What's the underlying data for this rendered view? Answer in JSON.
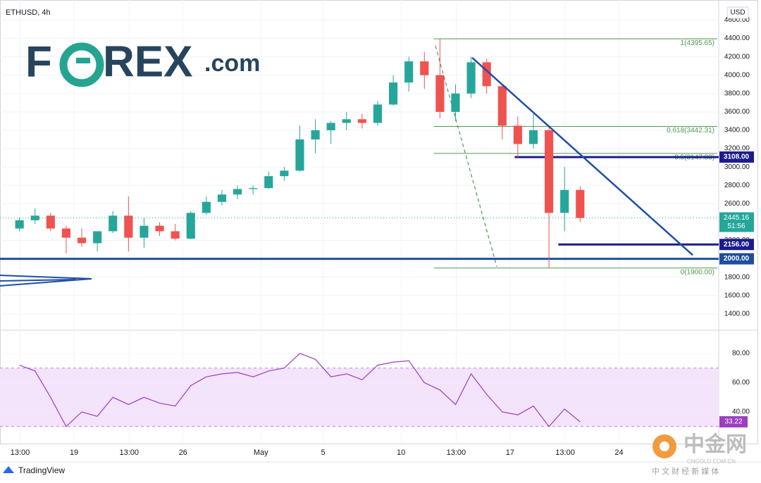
{
  "chart_data": [
    {
      "type": "candlestick",
      "title": "ETHUSD, 4h",
      "currency": "USD",
      "countdown": "51:56",
      "x": [
        15.5,
        16.5,
        17.5,
        18.5,
        19.5,
        20.5,
        21.5,
        22.5,
        23.5,
        24.5,
        25.5,
        26.5,
        27.5,
        28.5,
        29.5,
        30.5,
        31.5,
        32.5,
        33.5,
        34.5,
        35.5,
        36.5,
        37.5,
        38.5,
        39.5,
        40.5,
        41.5,
        42.5,
        43.5,
        44.5,
        45.5,
        46.5,
        47.5,
        48.5,
        49.5,
        50.5,
        51.5
      ],
      "open": [
        2330,
        2420,
        2470,
        2330,
        2230,
        2170,
        2300,
        2470,
        2230,
        2360,
        2300,
        2220,
        2500,
        2620,
        2700,
        2760,
        2770,
        2900,
        2960,
        3300,
        3400,
        3480,
        3520,
        3480,
        3680,
        3920,
        4150,
        4000,
        3600,
        3800,
        4140,
        3880,
        3450,
        3250,
        3400,
        2500,
        2750
      ],
      "high": [
        2450,
        2550,
        2500,
        2360,
        2330,
        2300,
        2520,
        2680,
        2450,
        2400,
        2380,
        2520,
        2680,
        2750,
        2800,
        2800,
        2950,
        3000,
        3450,
        3520,
        3500,
        3600,
        3580,
        3720,
        4000,
        4200,
        4250,
        4395.65,
        3900,
        4200,
        4180,
        3900,
        3550,
        3580,
        3450,
        3000,
        2790
      ],
      "low": [
        2300,
        2380,
        2300,
        2060,
        2130,
        2080,
        2280,
        2080,
        2120,
        2250,
        2200,
        2210,
        2480,
        2580,
        2650,
        2700,
        2760,
        2850,
        2950,
        3150,
        3250,
        3400,
        3420,
        3450,
        3670,
        3820,
        3850,
        3530,
        3500,
        3750,
        3800,
        3300,
        3100,
        3200,
        1900,
        2300,
        2400
      ],
      "close": [
        2420,
        2470,
        2330,
        2230,
        2170,
        2300,
        2470,
        2230,
        2360,
        2300,
        2220,
        2500,
        2620,
        2700,
        2760,
        2770,
        2900,
        2960,
        3300,
        3400,
        3480,
        3520,
        3480,
        3680,
        3920,
        4150,
        4000,
        3600,
        3800,
        4140,
        3880,
        3450,
        3250,
        3400,
        2500,
        2750,
        2445.16
      ],
      "up_color": "#26a69a",
      "down_color": "#ef5350",
      "xlim": [
        14.25,
        60.4
      ],
      "xticks": [
        {
          "value": 15.54,
          "label": "13:00"
        },
        19,
        {
          "value": 22.54,
          "label": "13:00"
        },
        26,
        {
          "value": 31,
          "label": "May"
        },
        {
          "value": 35,
          "label": "5"
        },
        {
          "value": 40,
          "label": "10"
        },
        {
          "value": 43.54,
          "label": "13:00"
        },
        {
          "value": 47,
          "label": "17"
        },
        {
          "value": 50.54,
          "label": "13:00"
        },
        {
          "value": 54,
          "label": "24"
        }
      ],
      "ylim": [
        1230,
        4780
      ],
      "yticks": [
        {
          "value": 1400,
          "label": "1400.00"
        },
        {
          "value": 1600,
          "label": "1600.00"
        },
        {
          "value": 1800,
          "label": "1800.00"
        },
        {
          "value": 2200,
          "label": "2200.00"
        },
        {
          "value": 2600,
          "label": "2600.00"
        },
        {
          "value": 2800,
          "label": "2800.00"
        },
        {
          "value": 3000,
          "label": "3000.00"
        },
        {
          "value": 3200,
          "label": "3200.00"
        },
        {
          "value": 3400,
          "label": "3400.00"
        },
        {
          "value": 3600,
          "label": "3600.00"
        },
        {
          "value": 3800,
          "label": "3800.00"
        },
        {
          "value": 4000,
          "label": "4000.00"
        },
        {
          "value": 4200,
          "label": "4200.00"
        },
        {
          "value": 4400,
          "label": "4400.00"
        },
        {
          "value": 4600,
          "label": "4600.00"
        }
      ],
      "grid": true,
      "levels": [
        {
          "label": "3108.00",
          "value": 3108,
          "from": 47.3,
          "color": "#1c1c8c"
        },
        {
          "label": "2156.00",
          "value": 2156,
          "from": 50.1,
          "color": "#1c1c8c"
        },
        {
          "label": "2000.00",
          "value": 2000,
          "from": 14.25,
          "color": "#1f4e9c"
        }
      ],
      "fib": [
        {
          "label": "1(4395.65)",
          "value": 4395.65
        },
        {
          "label": "0.618(3442.31)",
          "value": 3442.31
        },
        {
          "label": "0.5(3147.83)",
          "value": 3147.83
        },
        {
          "label": "0(1900.00)",
          "value": 1900
        }
      ],
      "fib_color": "#4f9a4f",
      "fib_from": 42.1,
      "trendline": {
        "x": [
          44.57,
          58.73
        ],
        "y": [
          4190,
          2040
        ],
        "color": "#1f4ea8"
      },
      "projection": {
        "x": [
          42.21,
          46.15
        ],
        "y": [
          4320,
          1915
        ],
        "color": "#4f9a4f"
      }
    },
    {
      "type": "line",
      "x": [
        15.5,
        16.5,
        17.5,
        18.5,
        19.5,
        20.5,
        21.5,
        22.5,
        23.5,
        24.5,
        25.5,
        26.5,
        27.5,
        28.5,
        29.5,
        30.5,
        31.5,
        32.5,
        33.5,
        34.5,
        35.5,
        36.5,
        37.5,
        38.5,
        39.5,
        40.5,
        41.5,
        42.5,
        43.5,
        44.5,
        45.5,
        46.5,
        47.5,
        48.5,
        49.5,
        50.5,
        51.5
      ],
      "values": [
        72,
        68,
        50,
        30,
        40,
        37,
        50,
        45,
        50,
        46,
        44,
        58,
        64,
        66,
        67,
        64,
        68,
        70,
        80,
        76,
        64,
        66,
        62,
        72,
        74,
        75,
        60,
        55,
        45,
        66,
        52,
        40,
        38,
        44,
        30,
        42,
        33.22
      ],
      "color": "#9c3fbf",
      "band": [
        30,
        70
      ],
      "band_color": "#f3e3fb",
      "ylim": [
        19.3,
        95.4
      ],
      "yticks": [
        {
          "value": 40,
          "label": "40.00"
        },
        {
          "value": 60,
          "label": "60.00"
        },
        {
          "value": 80,
          "label": "80.00"
        }
      ]
    }
  ],
  "branding": {
    "logo": [
      "F",
      "REX",
      ".com"
    ],
    "tradingview": "TradingView",
    "cngold": [
      "中金网",
      "CNGOLD.COM.CN",
      "中 文 财 经 新 媒 体"
    ]
  }
}
